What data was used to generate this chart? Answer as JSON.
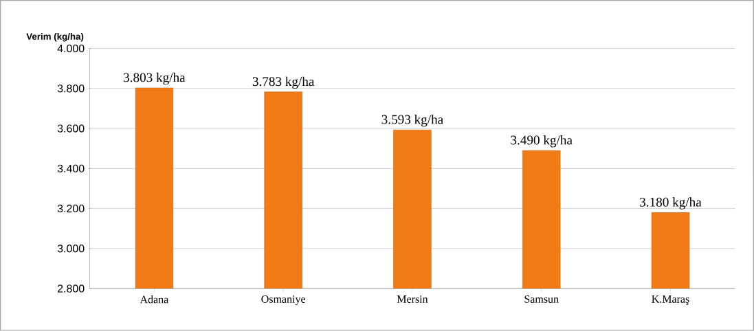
{
  "chart_data": {
    "type": "bar",
    "ylabel": "Verim (kg/ha)",
    "categories": [
      "Adana",
      "Osmaniye",
      "Mersin",
      "Samsun",
      "K.Maraş"
    ],
    "values": [
      3803,
      3783,
      3593,
      3490,
      3180
    ],
    "value_labels": [
      "3.803 kg/ha",
      "3.783 kg/ha",
      "3.593 kg/ha",
      "3.490 kg/ha",
      "3.180 kg/ha"
    ],
    "color": "#f07b16",
    "ylim": [
      2800,
      4000
    ],
    "yticks": [
      {
        "value": 2800,
        "label": "2.800"
      },
      {
        "value": 3000,
        "label": "3.000"
      },
      {
        "value": 3200,
        "label": "3.200"
      },
      {
        "value": 3400,
        "label": "3.400"
      },
      {
        "value": 3600,
        "label": "3.600"
      },
      {
        "value": 3800,
        "label": "3.800"
      },
      {
        "value": 4000,
        "label": "4.000"
      }
    ],
    "grid": "y"
  }
}
